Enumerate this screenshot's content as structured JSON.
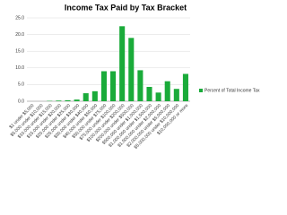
{
  "chart_data": {
    "type": "bar",
    "title": "Income Tax Paid by Tax Bracket",
    "categories": [
      "$1 under $5,000",
      "$5,000 under $10,000",
      "$10,000 under $15,000",
      "$15,000 under $20,000",
      "$20,000 under $25,000",
      "$25,000 under $30,000",
      "$30,000 under $40,000",
      "$40,000 under $50,000",
      "$50,000 under $75,000",
      "$75,000 under $100,000",
      "$100,000 under $200,000",
      "$200,000 under $500,000",
      "$500,000 under $1,000,000",
      "$1,000,000 under $1,500,000",
      "$1,500,000 under $2,000,000",
      "$2,000,000 under $5,000,000",
      "$5,000,000 under $10,000,000",
      "$10,000,000 or more"
    ],
    "series": [
      {
        "name": "Percent of Total Income Tax",
        "color": "#1aab3a",
        "values": [
          0,
          0,
          0.1,
          0.2,
          0.3,
          0.5,
          2.4,
          3.0,
          9.0,
          9.0,
          22.5,
          19.0,
          9.3,
          4.3,
          2.6,
          6.0,
          3.7,
          8.2
        ]
      }
    ],
    "ylim": [
      0,
      25
    ],
    "yticks": [
      {
        "value": 0,
        "label": "0.0"
      },
      {
        "value": 5,
        "label": "5.0"
      },
      {
        "value": 10,
        "label": "10.0"
      },
      {
        "value": 15,
        "label": "15.0"
      },
      {
        "value": 20,
        "label": "20.0"
      },
      {
        "value": 25,
        "label": "25.0"
      }
    ],
    "grid": true,
    "legend": "right"
  }
}
